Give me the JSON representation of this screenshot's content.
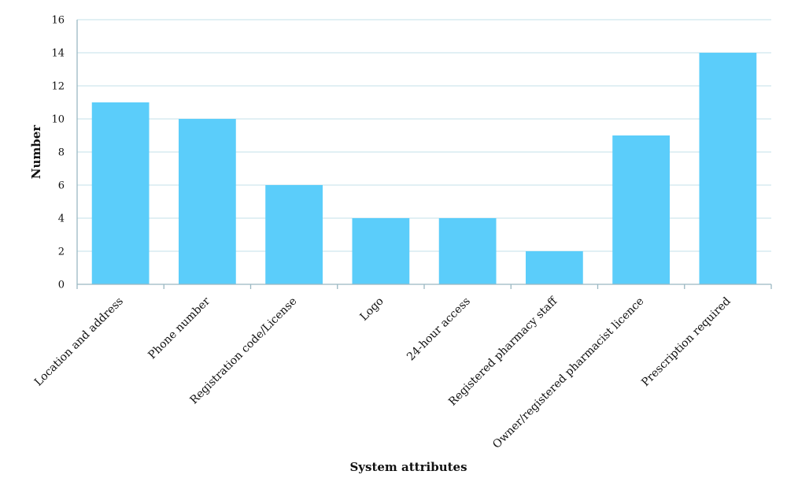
{
  "chart_data": {
    "type": "bar",
    "categories": [
      "Location and address",
      "Phone number",
      "Registration code/License",
      "Logo",
      "24-hour access",
      "Registered pharmacy staff",
      "Owner/registered pharmacist licence",
      "Prescription required"
    ],
    "values": [
      11,
      10,
      6,
      4,
      4,
      2,
      9,
      14
    ],
    "xlabel": "System attributes",
    "ylabel": "Number",
    "ylim": [
      0,
      16
    ],
    "yticks": [
      0,
      2,
      4,
      6,
      8,
      10,
      12,
      14,
      16
    ],
    "grid": true,
    "bar_color": "#5bcdfa",
    "grid_color": "#cfe7ee",
    "axis_color": "#9ab8c2"
  }
}
